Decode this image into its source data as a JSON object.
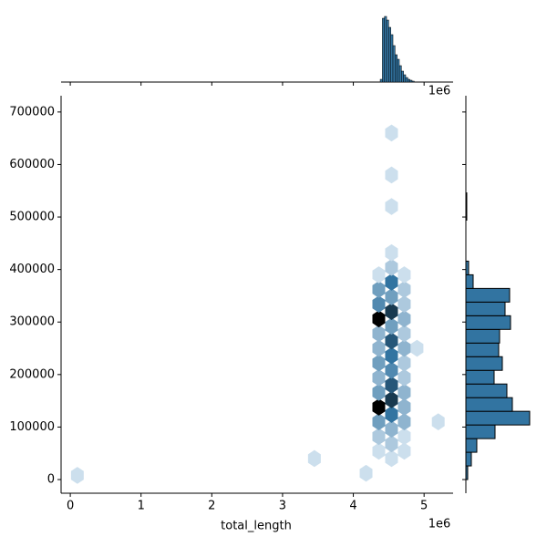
{
  "chart_data": {
    "type": "hexbin",
    "x_label": "total_length",
    "x_offset_label": "1e6",
    "xlim": [
      -0.13,
      5.41
    ],
    "xticks": [
      0,
      1,
      2,
      3,
      4,
      5
    ],
    "ylim": [
      -26000,
      731000
    ],
    "yticks": [
      0,
      100000,
      200000,
      300000,
      400000,
      500000,
      600000,
      700000
    ],
    "color": "#3274a1",
    "hex_x": [
      4.54,
      4.54,
      4.54,
      4.54,
      4.54,
      4.54,
      4.54,
      4.54,
      4.54,
      4.54,
      4.54,
      4.54,
      4.54,
      4.54,
      4.54,
      4.54,
      4.54,
      4.54,
      4.36,
      4.36,
      4.36,
      4.36,
      4.36,
      4.36,
      4.36,
      4.36,
      4.36,
      4.36,
      4.36,
      4.36,
      4.36,
      4.72,
      4.72,
      4.72,
      4.72,
      4.72,
      4.72,
      4.72,
      4.72,
      4.72,
      4.72,
      4.72,
      4.72,
      4.72,
      4.18,
      3.45,
      0.1,
      5.2,
      4.9
    ],
    "hex_y": [
      40000,
      68000,
      96000,
      124000,
      152000,
      180000,
      208000,
      236000,
      264000,
      292000,
      320000,
      348000,
      376000,
      404000,
      432000,
      520000,
      580000,
      660000,
      54000,
      82000,
      110000,
      138000,
      166000,
      194000,
      222000,
      250000,
      278000,
      306000,
      334000,
      362000,
      390000,
      54000,
      82000,
      110000,
      138000,
      166000,
      194000,
      222000,
      250000,
      278000,
      306000,
      334000,
      362000,
      390000,
      12000,
      40000,
      8000,
      110000,
      250000
    ],
    "hex_counts": [
      1,
      2,
      3,
      6,
      8,
      7,
      5,
      6,
      7,
      4,
      8,
      4,
      6,
      2,
      1,
      1,
      1,
      1,
      1,
      2,
      4,
      10,
      4,
      3,
      4,
      3,
      3,
      10,
      5,
      4,
      1,
      1,
      1,
      3,
      3,
      3,
      2,
      2,
      3,
      2,
      3,
      2,
      2,
      1,
      1,
      1,
      1,
      1,
      1
    ],
    "top_histogram": {
      "bins": [
        4.38,
        4.41,
        4.44,
        4.47,
        4.5,
        4.53,
        4.56,
        4.59,
        4.62,
        4.65,
        4.68,
        4.71,
        4.74,
        4.77,
        4.8,
        4.83,
        4.86
      ],
      "counts": [
        3,
        70,
        72,
        68,
        60,
        52,
        40,
        30,
        25,
        18,
        12,
        8,
        5,
        3,
        2,
        1
      ],
      "ylim": [
        0,
        75
      ]
    },
    "right_histogram": {
      "bins": [
        0,
        26000,
        52000,
        78000,
        104000,
        130000,
        156000,
        182000,
        208000,
        234000,
        260000,
        286000,
        312000,
        338000,
        364000,
        390000,
        416000,
        442000,
        468000,
        494000,
        520000,
        546000
      ],
      "counts": [
        2,
        6,
        12,
        32,
        70,
        51,
        45,
        31,
        40,
        36,
        37,
        49,
        43,
        48,
        8,
        3,
        0,
        0,
        0,
        1,
        1
      ],
      "xlim": [
        0,
        75
      ]
    }
  }
}
